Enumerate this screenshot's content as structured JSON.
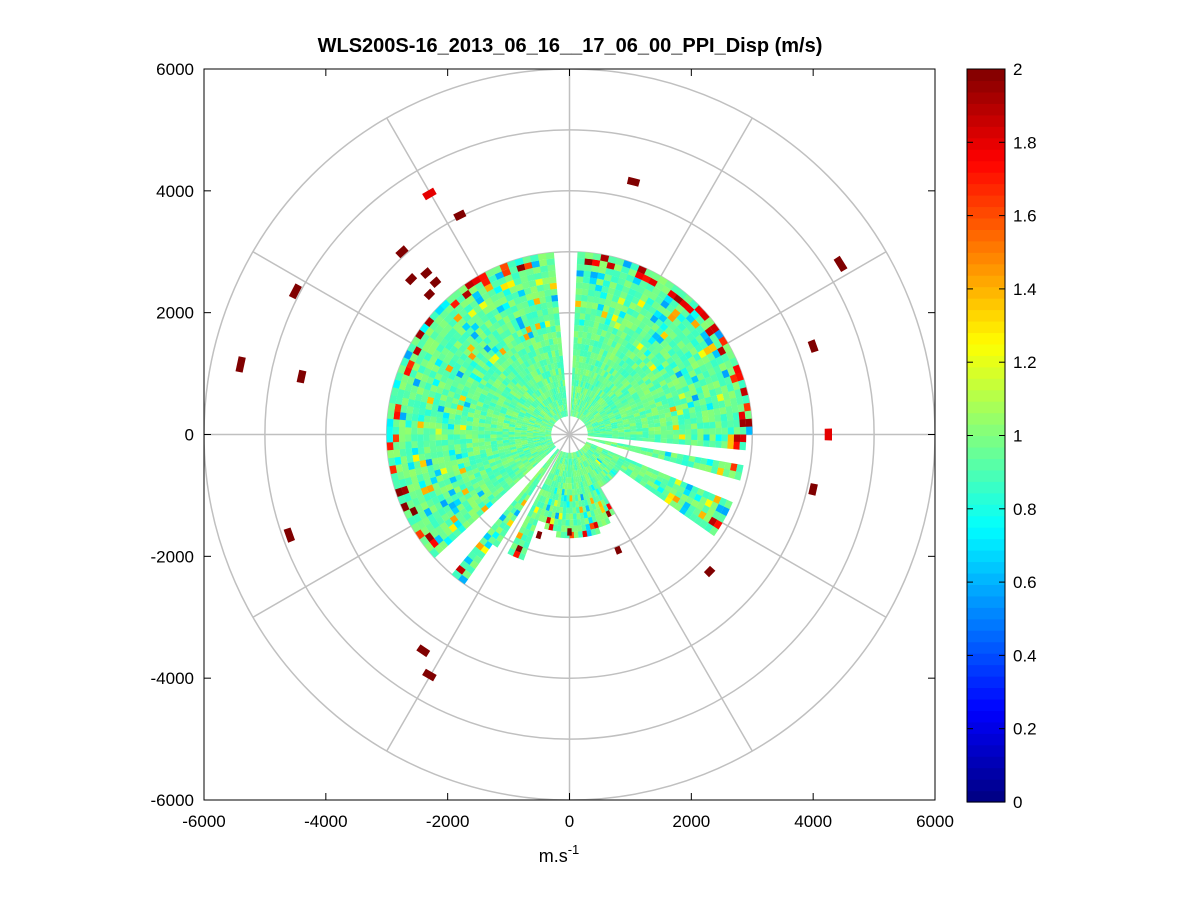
{
  "chart_data": {
    "type": "heatmap",
    "subtype": "polar-ppi",
    "title": "WLS200S-16_2013_06_16__17_06_00_PPI_Disp (m/s)",
    "xlabel": "m.s-1",
    "xlabel_base": "m.s",
    "xlabel_sup": "-1",
    "ylabel": "",
    "xlim": [
      -6000,
      6000
    ],
    "ylim": [
      -6000,
      6000
    ],
    "x_ticks": [
      "-6000",
      "-4000",
      "-2000",
      "0",
      "2000",
      "4000",
      "6000"
    ],
    "y_ticks": [
      "6000",
      "4000",
      "2000",
      "0",
      "-2000",
      "-4000",
      "-6000"
    ],
    "polar_rings": [
      1000,
      2000,
      3000,
      4000,
      5000,
      6000
    ],
    "polar_spokes_deg": [
      0,
      30,
      60,
      90,
      120,
      150,
      180,
      210,
      240,
      270,
      300,
      330
    ],
    "grid": true,
    "colormap": "jet",
    "colorbar": {
      "range": [
        0,
        2
      ],
      "ticks": [
        "2",
        "1.8",
        "1.6",
        "1.4",
        "1.2",
        "1",
        "0.8",
        "0.6",
        "0.4",
        "0.2",
        "0"
      ],
      "placement": "right"
    },
    "data_region": {
      "main_range_max": 3000,
      "inner_range_min": 300,
      "typical_value": 0.95,
      "gaps_deg": [
        [
          355,
          3
        ],
        [
          96,
          101
        ],
        [
          106,
          112
        ],
        [
          208,
          213
        ],
        [
          220,
          227
        ]
      ]
    },
    "outlier_blocks": [
      {
        "x": 1050,
        "y": 4150,
        "value": 2
      },
      {
        "x": -2300,
        "y": 3950,
        "value": 1.8
      },
      {
        "x": -1800,
        "y": 3600,
        "value": 2
      },
      {
        "x": -2750,
        "y": 3000,
        "value": 2
      },
      {
        "x": -2350,
        "y": 2650,
        "value": 2
      },
      {
        "x": -2200,
        "y": 2500,
        "value": 2
      },
      {
        "x": -2600,
        "y": 2550,
        "value": 2
      },
      {
        "x": -2300,
        "y": 2300,
        "value": 2
      },
      {
        "x": -4500,
        "y": 2350,
        "value": 2
      },
      {
        "x": -5400,
        "y": 1150,
        "value": 2
      },
      {
        "x": -4400,
        "y": 950,
        "value": 2
      },
      {
        "x": 4450,
        "y": 2800,
        "value": 2
      },
      {
        "x": 4000,
        "y": 1450,
        "value": 2
      },
      {
        "x": 4250,
        "y": 0,
        "value": 1.8
      },
      {
        "x": 4000,
        "y": -900,
        "value": 2
      },
      {
        "x": -4600,
        "y": -1650,
        "value": 2
      },
      {
        "x": 2300,
        "y": -2250,
        "value": 2
      },
      {
        "x": -2400,
        "y": -3550,
        "value": 2
      },
      {
        "x": -2300,
        "y": -3950,
        "value": 2
      },
      {
        "x": 800,
        "y": -1900,
        "value": 2
      },
      {
        "x": -500,
        "y": -1650,
        "value": 2
      },
      {
        "x": 0,
        "y": -1600,
        "value": 2
      }
    ]
  }
}
